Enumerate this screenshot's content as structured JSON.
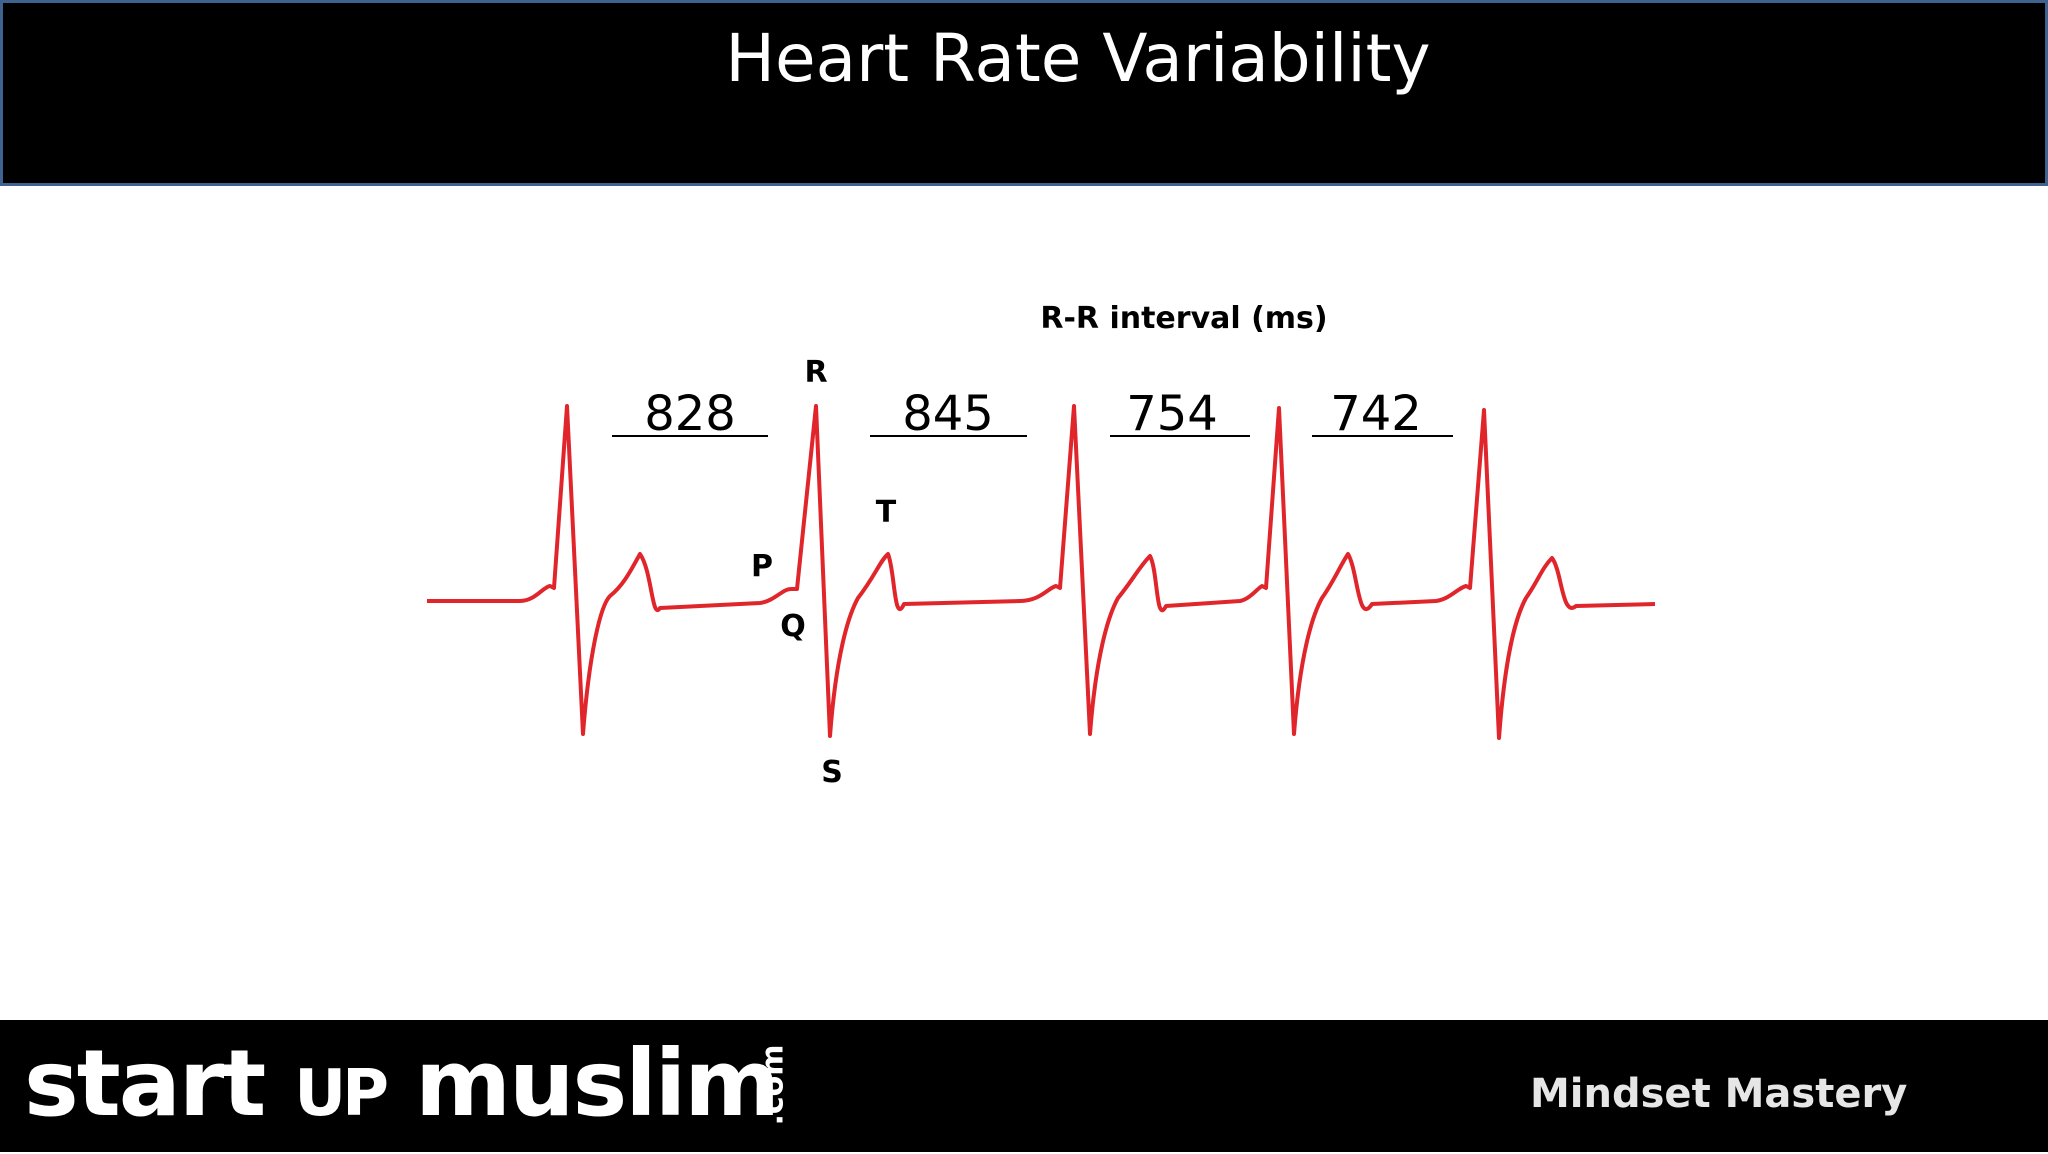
{
  "slide": {
    "title": "Heart Rate Variability"
  },
  "diagram": {
    "heading": "R-R interval (ms)",
    "waves": {
      "p": "P",
      "q": "Q",
      "r": "R",
      "s": "S",
      "t": "T"
    },
    "rr_intervals": [
      "828",
      "845",
      "754",
      "742"
    ],
    "trace_color": "#e0252b"
  },
  "footer": {
    "brand": {
      "start": "start",
      "up": "UP",
      "muslim": "muslim",
      "dotcom": ".com"
    },
    "tagline": "Mindset Mastery"
  }
}
